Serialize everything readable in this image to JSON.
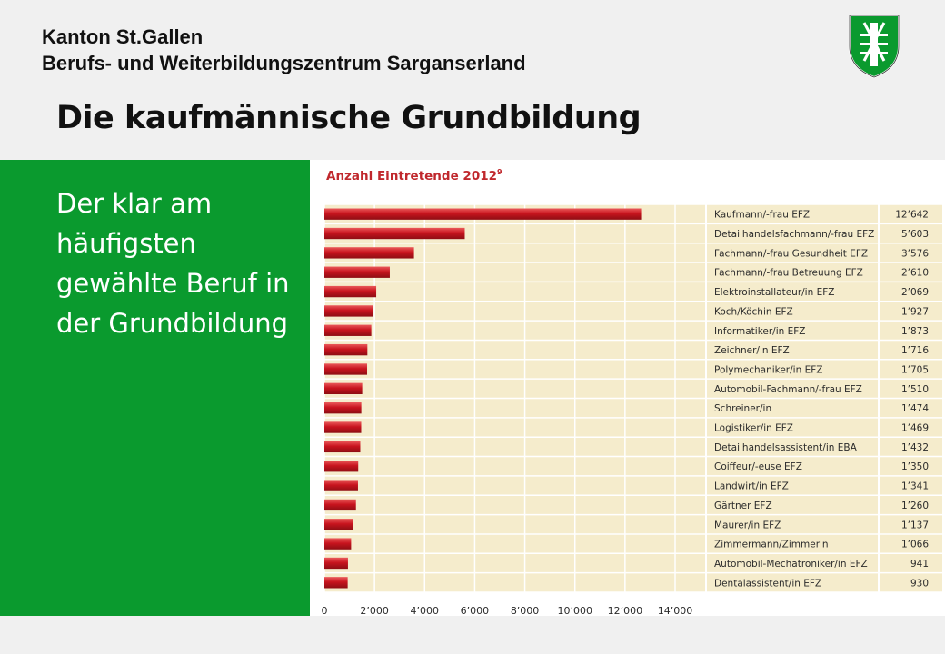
{
  "header": {
    "org_line1": "Kanton St.Gallen",
    "org_line2": "Berufs- und Weiterbildungszentrum Sarganserland",
    "title": "Die kaufmännische Grundbildung",
    "crest_icon": "st-gallen-coat-of-arms-icon"
  },
  "sidebar": {
    "text": "Der klar am häufigsten gewählte Beruf in der Grundbildung",
    "color": "#0a9a2e"
  },
  "chart_data": {
    "type": "bar",
    "orientation": "horizontal",
    "title": "Anzahl Eintretende 2012",
    "title_superscript": "9",
    "categories": [
      "Kaufmann/-frau EFZ",
      "Detailhandelsfachmann/-frau EFZ",
      "Fachmann/-frau Gesundheit EFZ",
      "Fachmann/-frau Betreuung EFZ",
      "Elektroinstallateur/in EFZ",
      "Koch/Köchin EFZ",
      "Informatiker/in EFZ",
      "Zeichner/in EFZ",
      "Polymechaniker/in EFZ",
      "Automobil-Fachmann/-frau EFZ",
      "Schreiner/in",
      "Logistiker/in EFZ",
      "Detailhandelsassistent/in EBA",
      "Coiffeur/-euse EFZ",
      "Landwirt/in EFZ",
      "Gärtner EFZ",
      "Maurer/in EFZ",
      "Zimmermann/Zimmerin",
      "Automobil-Mechatroniker/in EFZ",
      "Dentalassistent/in EFZ"
    ],
    "values": [
      12642,
      5603,
      3576,
      2610,
      2069,
      1927,
      1873,
      1716,
      1705,
      1510,
      1474,
      1469,
      1432,
      1350,
      1341,
      1260,
      1137,
      1066,
      941,
      930
    ],
    "value_labels": [
      "12’642",
      "5’603",
      "3’576",
      "2’610",
      "2’069",
      "1’927",
      "1’873",
      "1’716",
      "1’705",
      "1’510",
      "1’474",
      "1’469",
      "1’432",
      "1’350",
      "1’341",
      "1’260",
      "1’137",
      "1’066",
      "941",
      "930"
    ],
    "xlim": [
      0,
      14000
    ],
    "xticks": [
      0,
      2000,
      4000,
      6000,
      8000,
      10000,
      12000,
      14000
    ],
    "xtick_labels": [
      "0",
      "2’000",
      "4’000",
      "6’000",
      "8’000",
      "10’000",
      "12’000",
      "14’000"
    ],
    "grid": true,
    "colors": {
      "bar": "#c8141e",
      "bar_highlight": "#ea5a5a",
      "background": "#f5eccc",
      "title": "#c0282d",
      "grid": "#ffffff"
    }
  }
}
